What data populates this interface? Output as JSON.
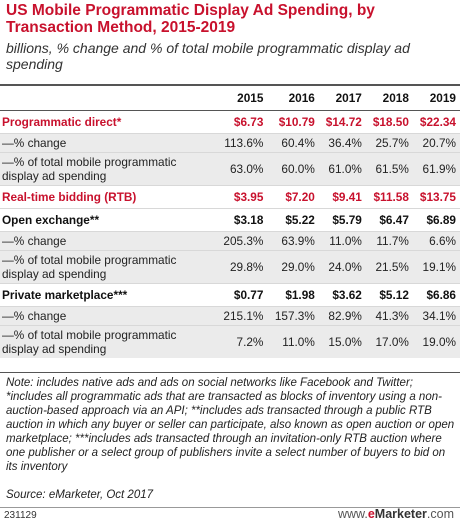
{
  "title": "US Mobile Programmatic Display Ad Spending, by Transaction Method, 2015-2019",
  "subtitle": "billions, % change and % of total mobile programmatic display ad spending",
  "chart_data": {
    "type": "table",
    "columns": [
      "2015",
      "2016",
      "2017",
      "2018",
      "2019"
    ],
    "rows": [
      {
        "label": "Programmatic direct*",
        "style": "red",
        "values": [
          "$6.73",
          "$10.79",
          "$14.72",
          "$18.50",
          "$22.34"
        ]
      },
      {
        "label": "—% change",
        "style": "normal",
        "values": [
          "113.6%",
          "60.4%",
          "36.4%",
          "25.7%",
          "20.7%"
        ]
      },
      {
        "label": "—% of total mobile programmatic display ad spending",
        "style": "normal",
        "values": [
          "63.0%",
          "60.0%",
          "61.0%",
          "61.5%",
          "61.9%"
        ]
      },
      {
        "label": "Real-time bidding (RTB)",
        "style": "red",
        "values": [
          "$3.95",
          "$7.20",
          "$9.41",
          "$11.58",
          "$13.75"
        ]
      },
      {
        "label": "Open exchange**",
        "style": "bold",
        "values": [
          "$3.18",
          "$5.22",
          "$5.79",
          "$6.47",
          "$6.89"
        ]
      },
      {
        "label": "—% change",
        "style": "normal",
        "values": [
          "205.3%",
          "63.9%",
          "11.0%",
          "11.7%",
          "6.6%"
        ]
      },
      {
        "label": "—% of total mobile programmatic display ad spending",
        "style": "normal",
        "values": [
          "29.8%",
          "29.0%",
          "24.0%",
          "21.5%",
          "19.1%"
        ]
      },
      {
        "label": "Private marketplace***",
        "style": "bold",
        "values": [
          "$0.77",
          "$1.98",
          "$3.62",
          "$5.12",
          "$6.86"
        ]
      },
      {
        "label": "—% change",
        "style": "normal",
        "values": [
          "215.1%",
          "157.3%",
          "82.9%",
          "41.3%",
          "34.1%"
        ]
      },
      {
        "label": "—% of total mobile programmatic display ad spending",
        "style": "normal",
        "values": [
          "7.2%",
          "11.0%",
          "15.0%",
          "17.0%",
          "19.0%"
        ]
      }
    ]
  },
  "note": "Note: includes native ads and ads on social networks like Facebook and Twitter; *includes all programmatic ads that are transacted as blocks of inventory using a non-auction-based approach via an API; **includes ads transacted through a public RTB auction in which any buyer or seller can participate, also known as open auction or open marketplace; ***includes ads transacted through an invitation-only RTB auction where one publisher or a select group of publishers invite a select number of buyers to bid on its inventory",
  "source": "Source: eMarketer, Oct 2017",
  "chart_id": "231129",
  "brand": {
    "prefix": "www.",
    "e": "e",
    "name": "Marketer",
    "suffix": ".com"
  },
  "colors": {
    "accent": "#c8112d",
    "shade": "#ebebeb",
    "rule": "#555555"
  }
}
